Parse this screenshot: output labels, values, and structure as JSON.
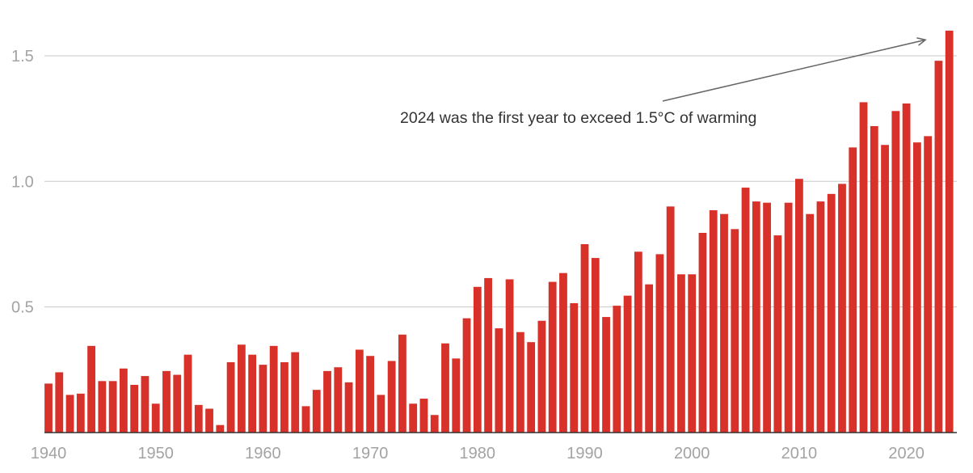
{
  "chart_data": {
    "type": "bar",
    "title": "",
    "xlabel": "",
    "ylabel": "",
    "ylim": [
      0,
      1.6
    ],
    "xlim": [
      1940,
      2024
    ],
    "grid": true,
    "bar_color": "#d7312a",
    "y_ticks": [
      0.5,
      1.0,
      1.5
    ],
    "y_tick_labels": [
      "0.5",
      "1.0",
      "1.5"
    ],
    "x_ticks": [
      1940,
      1950,
      1960,
      1970,
      1980,
      1990,
      2000,
      2010,
      2020
    ],
    "x_tick_labels": [
      "1940",
      "1950",
      "1960",
      "1970",
      "1980",
      "1990",
      "2000",
      "2010",
      "2020"
    ],
    "annotation": {
      "text": "2024 was the first year to exceed 1.5°C of warming",
      "points_to_year": 2022,
      "points_to_value": 1.56
    },
    "categories": [
      1940,
      1941,
      1942,
      1943,
      1944,
      1945,
      1946,
      1947,
      1948,
      1949,
      1950,
      1951,
      1952,
      1953,
      1954,
      1955,
      1956,
      1957,
      1958,
      1959,
      1960,
      1961,
      1962,
      1963,
      1964,
      1965,
      1966,
      1967,
      1968,
      1969,
      1970,
      1971,
      1972,
      1973,
      1974,
      1975,
      1976,
      1977,
      1978,
      1979,
      1980,
      1981,
      1982,
      1983,
      1984,
      1985,
      1986,
      1987,
      1988,
      1989,
      1990,
      1991,
      1992,
      1993,
      1994,
      1995,
      1996,
      1997,
      1998,
      1999,
      2000,
      2001,
      2002,
      2003,
      2004,
      2005,
      2006,
      2007,
      2008,
      2009,
      2010,
      2011,
      2012,
      2013,
      2014,
      2015,
      2016,
      2017,
      2018,
      2019,
      2020,
      2021,
      2022,
      2023,
      2024
    ],
    "values": [
      0.195,
      0.24,
      0.15,
      0.155,
      0.345,
      0.205,
      0.205,
      0.255,
      0.19,
      0.225,
      0.115,
      0.245,
      0.23,
      0.31,
      0.11,
      0.095,
      0.03,
      0.28,
      0.35,
      0.31,
      0.27,
      0.345,
      0.28,
      0.32,
      0.105,
      0.17,
      0.245,
      0.26,
      0.2,
      0.33,
      0.305,
      0.15,
      0.285,
      0.39,
      0.115,
      0.135,
      0.07,
      0.355,
      0.295,
      0.455,
      0.58,
      0.615,
      0.415,
      0.61,
      0.4,
      0.36,
      0.445,
      0.6,
      0.635,
      0.515,
      0.75,
      0.695,
      0.46,
      0.505,
      0.545,
      0.72,
      0.59,
      0.71,
      0.9,
      0.63,
      0.63,
      0.795,
      0.885,
      0.87,
      0.81,
      0.975,
      0.92,
      0.915,
      0.785,
      0.915,
      1.01,
      0.87,
      0.92,
      0.95,
      0.99,
      1.135,
      1.315,
      1.22,
      1.145,
      1.28,
      1.31,
      1.155,
      1.18,
      1.48,
      1.6
    ]
  }
}
